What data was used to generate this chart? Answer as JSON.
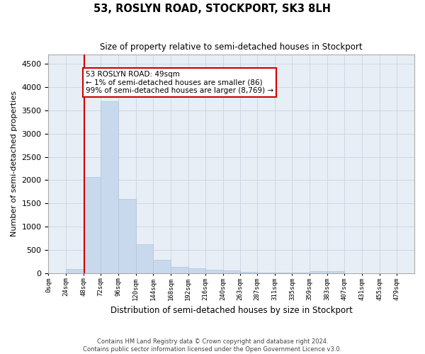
{
  "title": "53, ROSLYN ROAD, STOCKPORT, SK3 8LH",
  "subtitle": "Size of property relative to semi-detached houses in Stockport",
  "xlabel": "Distribution of semi-detached houses by size in Stockport",
  "ylabel": "Number of semi-detached properties",
  "footer_line1": "Contains HM Land Registry data © Crown copyright and database right 2024.",
  "footer_line2": "Contains public sector information licensed under the Open Government Licence v3.0.",
  "annotation_title": "53 ROSLYN ROAD: 49sqm",
  "annotation_line1": "← 1% of semi-detached houses are smaller (86)",
  "annotation_line2": "99% of semi-detached houses are larger (8,769) →",
  "property_size": 49,
  "bar_color": "#c8d9ed",
  "bar_edge_color": "#b0c4de",
  "vline_color": "#cc0000",
  "annotation_box_color": "#ffffff",
  "annotation_box_edge": "#cc0000",
  "background_color": "#ffffff",
  "plot_bg_color": "#e8eef5",
  "grid_color": "#c8d4e0",
  "ylim": [
    0,
    4700
  ],
  "yticks": [
    0,
    500,
    1000,
    1500,
    2000,
    2500,
    3000,
    3500,
    4000,
    4500
  ],
  "bin_edges": [
    0,
    24,
    48,
    72,
    96,
    120,
    144,
    168,
    192,
    216,
    240,
    263,
    287,
    311,
    335,
    359,
    383,
    407,
    431,
    455,
    479,
    503
  ],
  "tick_labels": [
    "0sqm",
    "24sqm",
    "48sqm",
    "72sqm",
    "96sqm",
    "120sqm",
    "144sqm",
    "168sqm",
    "192sqm",
    "216sqm",
    "240sqm",
    "263sqm",
    "287sqm",
    "311sqm",
    "335sqm",
    "359sqm",
    "383sqm",
    "407sqm",
    "431sqm",
    "455sqm",
    "479sqm"
  ],
  "counts": [
    0,
    90,
    2060,
    3700,
    1600,
    620,
    280,
    140,
    100,
    70,
    55,
    35,
    20,
    15,
    8,
    50,
    40,
    5,
    5,
    3,
    2
  ]
}
